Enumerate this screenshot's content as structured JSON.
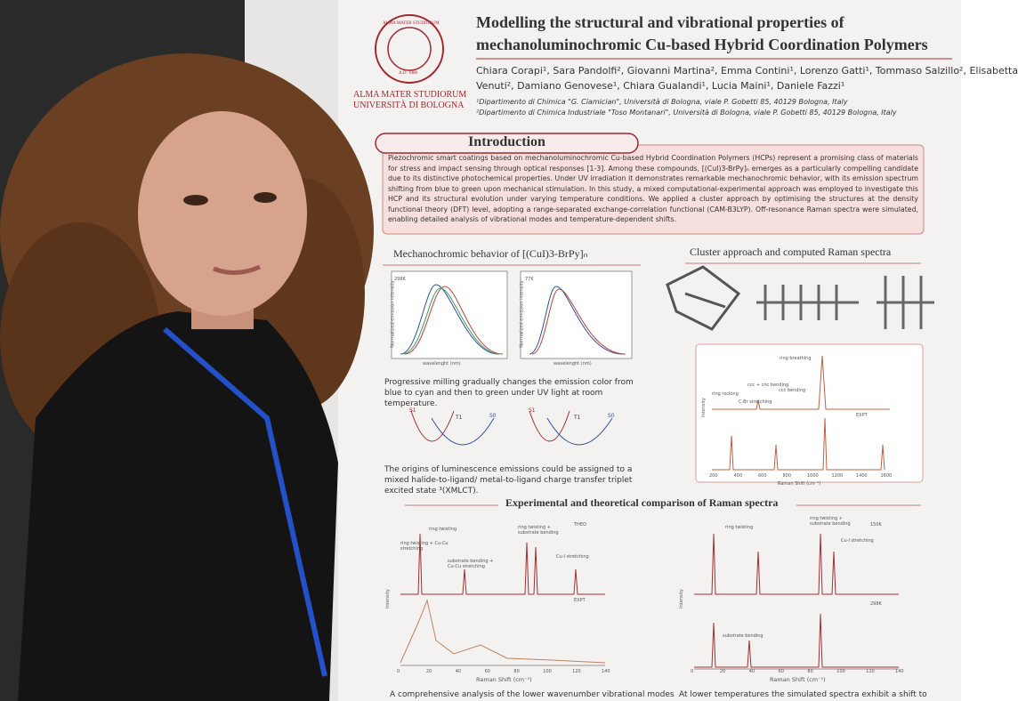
{
  "poster": {
    "seal": [
      "ALMA MATER STUDIORUM",
      "A.D. 1088"
    ],
    "university": [
      "ALMA MATER STUDIORUM",
      "UNIVERSITÀ DI BOLOGNA"
    ],
    "title": [
      "Modelling the structural and vibrational properties of",
      "mechanoluminochromic Cu-based Hybrid Coordination Polymers"
    ],
    "authors": [
      "Chiara Corapi¹, Sara Pandolfi², Giovanni Martina², Emma Contini¹, Lorenzo Gatti¹, Tommaso Salzillo², Elisabetta",
      "Venuti², Damiano Genovese¹, Chiara Gualandi¹, Lucia Maini¹, Daniele Fazzi¹"
    ],
    "affiliations": [
      "¹Dipartimento di Chimica \"G. Ciamician\", Università di Bologna, viale P. Gobetti 85, 40129 Bologna, Italy",
      "²Dipartimento di Chimica Industriale \"Toso Montanari\", Università di Bologna, viale P. Gobetti 85, 40129 Bologna, Italy"
    ],
    "intro_heading": "Introduction",
    "intro_body": "Piezochromic smart coatings based on mechanoluminochromic Cu-based Hybrid Coordination Polymers (HCPs) represent a promising class of materials for stress and impact sensing through optical responses [1-3]. Among these compounds, [(CuI)3-BrPy]ₙ emerges as a particularly compelling candidate due to its distinctive photochemical properties. Under UV irradiation it demonstrates remarkable mechanochromic behavior, with its emission spectrum shifting from blue to green upon mechanical stimulation. In this study, a mixed computational-experimental approach was employed to investigate this HCP and its structural evolution under varying temperature conditions. We applied a cluster approach by optimising the structures at the density functional theory (DFT) level, adopting a range-separated exchange-correlation functional (CAM-B3LYP). Off-resonance Raman spectra were simulated, enabling detailed analysis of vibrational modes and temperature-dependent shifts.",
    "mech_heading": "Mechanochromic behavior of [(CuI)3-BrPy]ₙ",
    "emission_plots": [
      {
        "label": "298K",
        "x_label": "wavelenght (nm)",
        "y_label": "Normalized emission intensity"
      },
      {
        "label": "77K",
        "x_label": "wavelenght (nm)",
        "y_label": "Normalized emission intensity"
      }
    ],
    "mech_caption": "Progressive milling gradually changes the emission color from blue to cyan and then to green under UV light at room temperature.",
    "state_labels": [
      "S1",
      "T1",
      "S0",
      "S1",
      "T1",
      "S0"
    ],
    "mech_caption2": "The origins of luminescence emissions could be assigned to a mixed halide-to-ligand/ metal-to-ligand charge transfer triplet excited state ³(XMLCT).",
    "cluster_heading": "Cluster approach and computed Raman spectra",
    "cluster_plot": {
      "labels": [
        "ring breathing",
        "ccc + cnc bending",
        "ccc bending",
        "ring rocking",
        "C-Br stretching",
        "EXPT"
      ],
      "x_label": "Raman Shift (cm⁻¹)",
      "y_label": "Intensity",
      "xticks": [
        200,
        400,
        600,
        800,
        1000,
        1200,
        1400,
        1600
      ]
    },
    "comparison_heading": "Experimental and theoretical comparison of Raman spectra",
    "comparison_plots": [
      {
        "labels": [
          "THEO",
          "EXPT",
          "ring twisting",
          "ring twisting + substrate bending",
          "ring twisting + Cu-Cu stretching",
          "substrate bending + Cu-Cu stretching",
          "Cu-I stretching"
        ],
        "x_label": "Raman Shift (cm⁻¹)",
        "y_label": "Intensity",
        "xticks": [
          0,
          20,
          40,
          60,
          80,
          100,
          120,
          140
        ]
      },
      {
        "labels": [
          "150K",
          "298K",
          "ring twisting",
          "ring twisting + substrate bending",
          "Cu-I stretching",
          "substrate bending"
        ],
        "x_label": "Raman Shift (cm⁻¹)",
        "y_label": "Intensity",
        "xticks": [
          0,
          20,
          40,
          60,
          80,
          100,
          120,
          140
        ]
      }
    ],
    "footer": [
      "A comprehensive analysis of the lower wavenumber vibrational modes",
      "At lower temperatures the simulated spectra exhibit a shift to"
    ]
  }
}
